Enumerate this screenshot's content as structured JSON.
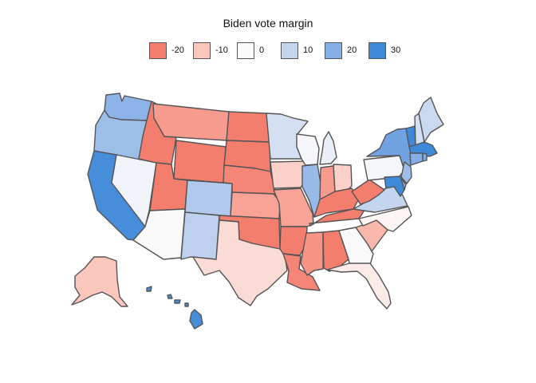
{
  "legend": {
    "title": "Biden vote margin",
    "items": [
      {
        "label": "-20",
        "color": "#f47e6e"
      },
      {
        "label": "-10",
        "color": "#fbc7bd"
      },
      {
        "label": "0",
        "color": "#fbfafa"
      },
      {
        "label": "10",
        "color": "#c3d5ef"
      },
      {
        "label": "20",
        "color": "#86aee6"
      },
      {
        "label": "30",
        "color": "#3f89d9"
      }
    ]
  },
  "chart_data": {
    "type": "choropleth",
    "title": "Biden vote margin",
    "value_range": [
      -40,
      35
    ],
    "states": [
      {
        "abbr": "WA",
        "value": 19
      },
      {
        "abbr": "OR",
        "value": 16
      },
      {
        "abbr": "CA",
        "value": 29
      },
      {
        "abbr": "NV",
        "value": 2
      },
      {
        "abbr": "ID",
        "value": -31
      },
      {
        "abbr": "MT",
        "value": -16
      },
      {
        "abbr": "WY",
        "value": -43
      },
      {
        "abbr": "UT",
        "value": -21
      },
      {
        "abbr": "AZ",
        "value": 0.3
      },
      {
        "abbr": "CO",
        "value": 13
      },
      {
        "abbr": "NM",
        "value": 11
      },
      {
        "abbr": "ND",
        "value": -33
      },
      {
        "abbr": "SD",
        "value": -26
      },
      {
        "abbr": "NE",
        "value": -19
      },
      {
        "abbr": "KS",
        "value": -15
      },
      {
        "abbr": "OK",
        "value": -33
      },
      {
        "abbr": "TX",
        "value": -6
      },
      {
        "abbr": "MN",
        "value": 7
      },
      {
        "abbr": "IA",
        "value": -8
      },
      {
        "abbr": "MO",
        "value": -15
      },
      {
        "abbr": "AR",
        "value": -28
      },
      {
        "abbr": "LA",
        "value": -19
      },
      {
        "abbr": "WI",
        "value": 1
      },
      {
        "abbr": "IL",
        "value": 17
      },
      {
        "abbr": "MI",
        "value": 3
      },
      {
        "abbr": "IN",
        "value": -16
      },
      {
        "abbr": "OH",
        "value": -8
      },
      {
        "abbr": "KY",
        "value": -26
      },
      {
        "abbr": "TN",
        "value": -23
      },
      {
        "abbr": "MS",
        "value": -17
      },
      {
        "abbr": "AL",
        "value": -25
      },
      {
        "abbr": "GA",
        "value": 0.2
      },
      {
        "abbr": "FL",
        "value": -3
      },
      {
        "abbr": "SC",
        "value": -12
      },
      {
        "abbr": "NC",
        "value": -1
      },
      {
        "abbr": "VA",
        "value": 10
      },
      {
        "abbr": "WV",
        "value": -39
      },
      {
        "abbr": "PA",
        "value": 1
      },
      {
        "abbr": "NY",
        "value": 23
      },
      {
        "abbr": "VT",
        "value": 35
      },
      {
        "abbr": "NH",
        "value": 7
      },
      {
        "abbr": "ME",
        "value": 9
      },
      {
        "abbr": "MA",
        "value": 33
      },
      {
        "abbr": "RI",
        "value": 21
      },
      {
        "abbr": "CT",
        "value": 20
      },
      {
        "abbr": "NJ",
        "value": 16
      },
      {
        "abbr": "DE",
        "value": 19
      },
      {
        "abbr": "MD",
        "value": 33
      },
      {
        "abbr": "AK",
        "value": -10
      },
      {
        "abbr": "HI",
        "value": 29
      }
    ]
  }
}
